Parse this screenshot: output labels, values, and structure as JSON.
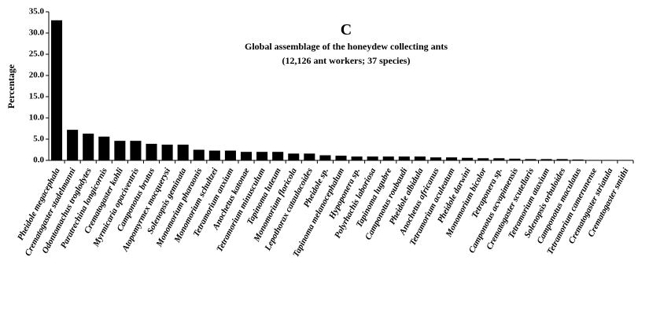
{
  "chart_data": {
    "type": "bar",
    "title": "C",
    "subtitle": [
      "Global assemblage of the honeydew collecting ants",
      "(12,126 ant workers; 37 species)"
    ],
    "ylabel": "Percentage",
    "color": "#000000",
    "categories": [
      "Pheidole megacephala",
      "Crematogaster stadelmanni",
      "Odontomachus troglodytes",
      "Paratrechina longicornis",
      "Crematogaster kohli",
      "Myrmicaria opaciventris",
      "Camponotus brutus",
      "Atopomyrmex mocquerysi",
      "Solenopsis geminata",
      "Monomorium pharaonis",
      "Monomorium schultzei",
      "Tetramorium anxium",
      "Anochetus katonae",
      "Tetramorium minusculum",
      "Tapinoma luteum",
      "Monomorium floricola",
      "Lepothorax cataulacoides",
      "Pheidole sp.",
      "Tapinoma melanocephalum",
      "Hypoponera sp.",
      "Polyrhachis laboriosa",
      "Tapinoma lugubre",
      "Camponotus roubaudi",
      "Pheidole albidula",
      "Anochetus africanus",
      "Tetramorium aculeatum",
      "Pheidole darwini",
      "Monomorium bicolor",
      "Tetraponera sp.",
      "Camponotus acvapimensis",
      "Crematogaster scutellaris",
      "Tetramorium ataxium",
      "Solenopsis orbuloides",
      "Camponotus maculatus",
      "Tetramorium camerunense",
      "Crematogaster striatula",
      "Crematogaster smithi"
    ],
    "values": [
      33.0,
      7.2,
      6.3,
      5.6,
      4.6,
      4.6,
      3.9,
      3.7,
      3.7,
      2.5,
      2.3,
      2.3,
      2.0,
      2.0,
      2.0,
      1.6,
      1.6,
      1.2,
      1.1,
      0.9,
      0.9,
      0.9,
      0.9,
      0.9,
      0.7,
      0.7,
      0.6,
      0.5,
      0.5,
      0.4,
      0.3,
      0.3,
      0.3,
      0.2,
      0.1,
      0.1,
      0.1
    ],
    "ylim": [
      0,
      35
    ],
    "yticks": [
      {
        "value": 0,
        "label": "0.0"
      },
      {
        "value": 5,
        "label": "5.0"
      },
      {
        "value": 10,
        "label": "10.0"
      },
      {
        "value": 15,
        "label": "15.0"
      },
      {
        "value": 20,
        "label": "20.0"
      },
      {
        "value": 25,
        "label": "25.0"
      },
      {
        "value": 30,
        "label": "30.0"
      },
      {
        "value": 35,
        "label": "35.0"
      }
    ],
    "grid": false
  }
}
